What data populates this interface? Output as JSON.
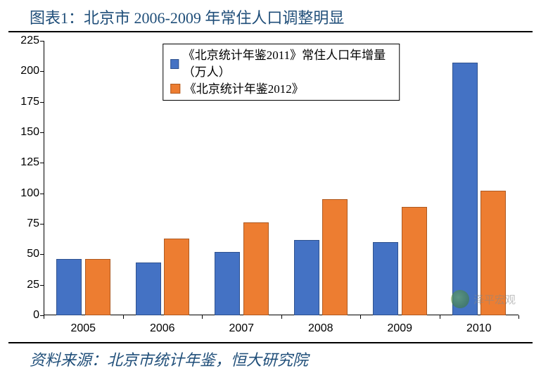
{
  "title": "图表1：北京市 2006-2009 年常住人口调整明显",
  "source": "资料来源：北京市统计年鉴，恒大研究院",
  "watermark": "泽平宏观",
  "chart": {
    "type": "bar",
    "categories": [
      "2005",
      "2006",
      "2007",
      "2008",
      "2009",
      "2010"
    ],
    "series": [
      {
        "label": "《北京统计年鉴2011》常住人口年增量（万人）",
        "color": "#4472c4",
        "border": "#2f528f",
        "values": [
          46,
          43,
          52,
          62,
          60,
          207
        ]
      },
      {
        "label": "《北京统计年鉴2012》",
        "color": "#ed7d31",
        "border": "#ae5a21",
        "values": [
          46,
          63,
          76,
          95,
          89,
          102
        ]
      }
    ],
    "ylim": [
      0,
      225
    ],
    "ytick_step": 25,
    "bar_width": 0.32,
    "bar_gap": 0.04,
    "background_color": "#ffffff",
    "axis_color": "#000000",
    "title_color": "#1f4e79",
    "title_fontsize": 22,
    "label_fontsize": 16,
    "legend_fontsize": 17,
    "legend_border": "#000000"
  }
}
